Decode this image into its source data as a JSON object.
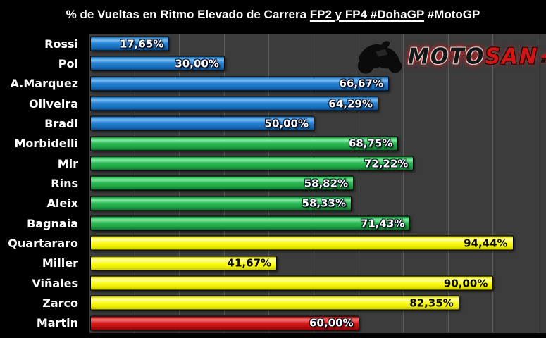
{
  "title": {
    "part1": "% de Vueltas en Ritmo Elevado de Carrera ",
    "part2_underlined": "FP2 y FP4 #DohaGP",
    "part3": " #MotoGP"
  },
  "logo": {
    "word_moto": "MOTO",
    "word_san": "SAN"
  },
  "chart_data": {
    "type": "bar",
    "orientation": "horizontal",
    "title": "% de Vueltas en Ritmo Elevado de Carrera FP2 y FP4 #DohaGP #MotoGP",
    "categories": [
      "Rossi",
      "Pol",
      "A.Marquez",
      "Oliveira",
      "Bradl",
      "Morbidelli",
      "Mir",
      "Rins",
      "Aleix",
      "Bagnaia",
      "Quartararo",
      "Miller",
      "Viñales",
      "Zarco",
      "Martin"
    ],
    "values": [
      17.65,
      30.0,
      66.67,
      64.29,
      50.0,
      68.75,
      72.22,
      58.82,
      58.33,
      71.43,
      94.44,
      41.67,
      90.0,
      82.35,
      60.0
    ],
    "value_labels": [
      "17,65%",
      "30,00%",
      "66,67%",
      "64,29%",
      "50,00%",
      "68,75%",
      "72,22%",
      "58,82%",
      "58,33%",
      "71,43%",
      "94,44%",
      "41,67%",
      "90,00%",
      "82,35%",
      "60,00%"
    ],
    "bar_color_groups": [
      "blue",
      "blue",
      "blue",
      "blue",
      "blue",
      "green",
      "green",
      "green",
      "green",
      "green",
      "yellow",
      "yellow",
      "yellow",
      "yellow",
      "red"
    ],
    "value_label_styles": {
      "blue": "light",
      "green": "light",
      "yellow": "dark",
      "red": "light"
    },
    "xlim": [
      0,
      100
    ],
    "gridline_step_pct": 10,
    "grid": "vertical",
    "legend": "none",
    "colors": {
      "blue": "#1a74c4",
      "green": "#2cb954",
      "yellow": "#f5f500",
      "red": "#cc1111",
      "plot_background": "#3c3c3c",
      "page_background": "#000000",
      "gridline": "#5c5c5c",
      "label_text": "#ffffff"
    }
  }
}
